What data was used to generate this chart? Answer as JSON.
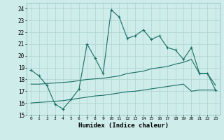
{
  "xlabel": "Humidex (Indice chaleur)",
  "xlim": [
    -0.5,
    23.5
  ],
  "ylim": [
    15,
    24.5
  ],
  "yticks": [
    15,
    16,
    17,
    18,
    19,
    20,
    21,
    22,
    23,
    24
  ],
  "xticks": [
    0,
    1,
    2,
    3,
    4,
    5,
    6,
    7,
    8,
    9,
    10,
    11,
    12,
    13,
    14,
    15,
    16,
    17,
    18,
    19,
    20,
    21,
    22,
    23
  ],
  "bg_color": "#ceecea",
  "grid_color": "#aed4d0",
  "line_color": "#1a6e64",
  "line1_x": [
    0,
    1,
    2,
    3,
    4,
    5,
    6,
    7,
    8,
    9,
    10,
    11,
    12,
    13,
    14,
    15,
    16,
    17,
    18,
    19,
    20,
    21,
    22,
    23
  ],
  "line1_y": [
    18.8,
    18.3,
    17.5,
    15.9,
    15.5,
    16.3,
    17.2,
    21.0,
    19.8,
    18.5,
    23.9,
    23.3,
    21.5,
    21.7,
    22.2,
    21.4,
    21.7,
    20.7,
    20.5,
    19.7,
    20.7,
    18.5,
    18.5,
    17.1
  ],
  "line2_x": [
    0,
    1,
    2,
    3,
    4,
    5,
    6,
    7,
    8,
    9,
    10,
    11,
    12,
    13,
    14,
    15,
    16,
    17,
    18,
    19,
    20,
    21,
    22,
    23
  ],
  "line2_y": [
    17.6,
    17.6,
    17.65,
    17.7,
    17.75,
    17.8,
    17.9,
    18.0,
    18.05,
    18.1,
    18.2,
    18.3,
    18.5,
    18.6,
    18.7,
    18.9,
    19.0,
    19.1,
    19.3,
    19.45,
    19.7,
    18.5,
    18.5,
    17.5
  ],
  "line3_x": [
    0,
    1,
    2,
    3,
    4,
    5,
    6,
    7,
    8,
    9,
    10,
    11,
    12,
    13,
    14,
    15,
    16,
    17,
    18,
    19,
    20,
    21,
    22,
    23
  ],
  "line3_y": [
    16.0,
    16.05,
    16.1,
    16.15,
    16.2,
    16.3,
    16.4,
    16.5,
    16.6,
    16.65,
    16.75,
    16.85,
    16.95,
    17.0,
    17.1,
    17.2,
    17.3,
    17.4,
    17.5,
    17.6,
    17.0,
    17.1,
    17.1,
    17.1
  ]
}
